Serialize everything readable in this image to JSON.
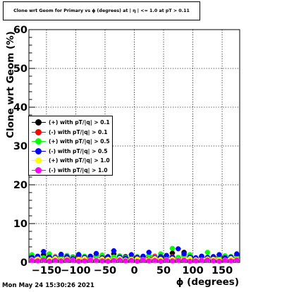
{
  "title": "Clone wrt Geom for Primary vs ϕ (degrees) at | η | <= 1.0 at pT > 0.11",
  "timestamp": "Mon May 24 15:30:26 2021",
  "chart_data": {
    "type": "scatter",
    "title": "Clone wrt Geom for Primary vs ϕ (degrees) at | η | <= 1.0 at pT > 0.11",
    "xlabel": "ϕ (degrees)",
    "ylabel": "Clone wrt  Geom (%)",
    "xlim": [
      -180,
      180
    ],
    "ylim": [
      0,
      60
    ],
    "xticks": [
      -150,
      -100,
      -50,
      0,
      50,
      100,
      150
    ],
    "xtick_labels": [
      "−150",
      "−100",
      "−50",
      "0",
      "50",
      "100",
      "150"
    ],
    "yticks": [
      0,
      10,
      20,
      30,
      40,
      50,
      60
    ],
    "ytick_labels": [
      "0",
      "10",
      "20",
      "30",
      "40",
      "50",
      "60"
    ],
    "grid": true,
    "legend_position": "middle-left",
    "series": [
      {
        "name": "(+) with pT/|q| > 0.1",
        "color": "#000000",
        "x": [
          -175,
          -165,
          -155,
          -145,
          -135,
          -125,
          -115,
          -105,
          -95,
          -85,
          -75,
          -65,
          -55,
          -45,
          -35,
          -25,
          -15,
          -5,
          5,
          15,
          25,
          35,
          45,
          55,
          65,
          75,
          85,
          95,
          105,
          115,
          125,
          135,
          145,
          155,
          165,
          175
        ],
        "y": [
          1.5,
          1.2,
          2.0,
          1.3,
          1.0,
          1.6,
          1.1,
          1.4,
          1.8,
          1.0,
          1.3,
          1.7,
          1.2,
          1.0,
          2.2,
          1.1,
          1.5,
          1.2,
          0.9,
          1.4,
          1.7,
          1.1,
          1.3,
          1.6,
          2.4,
          1.2,
          2.6,
          1.4,
          1.1,
          1.5,
          1.2,
          1.0,
          1.3,
          1.6,
          1.1,
          1.8
        ]
      },
      {
        "name": "(-) with pT/|q| > 0.1",
        "color": "#ff0000",
        "x": [
          -175,
          -165,
          -155,
          -145,
          -135,
          -125,
          -115,
          -105,
          -95,
          -85,
          -75,
          -65,
          -55,
          -45,
          -35,
          -25,
          -15,
          -5,
          5,
          15,
          25,
          35,
          45,
          55,
          65,
          75,
          85,
          95,
          105,
          115,
          125,
          135,
          145,
          155,
          165,
          175
        ],
        "y": [
          1.1,
          1.4,
          1.0,
          1.2,
          1.5,
          1.0,
          1.3,
          1.1,
          1.6,
          1.2,
          1.0,
          1.4,
          1.1,
          1.3,
          1.0,
          1.5,
          1.2,
          1.1,
          1.4,
          1.0,
          1.3,
          1.6,
          1.1,
          1.2,
          1.5,
          1.0,
          1.8,
          1.3,
          1.1,
          1.4,
          1.2,
          1.0,
          1.5,
          1.1,
          1.3,
          1.2
        ]
      },
      {
        "name": "(+) with pT/|q| > 0.5",
        "color": "#00ff00",
        "x": [
          -175,
          -165,
          -155,
          -145,
          -135,
          -125,
          -115,
          -105,
          -95,
          -85,
          -75,
          -65,
          -55,
          -45,
          -35,
          -25,
          -15,
          -5,
          5,
          15,
          25,
          35,
          45,
          55,
          65,
          75,
          85,
          95,
          105,
          115,
          125,
          135,
          145,
          155,
          165,
          175
        ],
        "y": [
          2.0,
          1.5,
          1.2,
          2.2,
          1.4,
          1.1,
          1.8,
          1.3,
          2.1,
          1.6,
          1.2,
          1.5,
          1.9,
          1.1,
          1.4,
          1.7,
          1.3,
          1.0,
          1.5,
          1.2,
          1.8,
          1.4,
          2.2,
          1.6,
          3.6,
          1.3,
          1.5,
          2.0,
          1.2,
          1.6,
          2.6,
          1.4,
          1.2,
          1.7,
          1.5,
          1.3
        ]
      },
      {
        "name": "(-) with pT/|q| > 0.5",
        "color": "#0000ff",
        "x": [
          -175,
          -165,
          -155,
          -145,
          -135,
          -125,
          -115,
          -105,
          -95,
          -85,
          -75,
          -65,
          -55,
          -45,
          -35,
          -25,
          -15,
          -5,
          5,
          15,
          25,
          35,
          45,
          55,
          65,
          75,
          85,
          95,
          105,
          115,
          125,
          135,
          145,
          155,
          165,
          175
        ],
        "y": [
          1.3,
          1.6,
          2.8,
          1.4,
          1.2,
          2.1,
          1.5,
          1.0,
          2.0,
          1.3,
          1.6,
          2.3,
          1.2,
          1.5,
          3.0,
          1.4,
          1.1,
          2.0,
          1.3,
          1.6,
          2.6,
          1.2,
          1.5,
          1.8,
          1.3,
          3.5,
          2.2,
          1.4,
          1.2,
          1.6,
          1.3,
          1.5,
          2.0,
          1.2,
          1.4,
          2.2
        ]
      },
      {
        "name": "(+) with pT/|q| > 1.0",
        "color": "#ffff00",
        "x": [
          -175,
          -165,
          -155,
          -145,
          -135,
          -125,
          -115,
          -105,
          -95,
          -85,
          -75,
          -65,
          -55,
          -45,
          -35,
          -25,
          -15,
          -5,
          5,
          15,
          25,
          35,
          45,
          55,
          65,
          75,
          85,
          95,
          105,
          115,
          125,
          135,
          145,
          155,
          165,
          175
        ],
        "y": [
          0.7,
          0.9,
          0.6,
          0.8,
          1.0,
          0.7,
          0.9,
          0.6,
          0.8,
          1.0,
          0.7,
          0.6,
          0.9,
          0.8,
          0.7,
          1.0,
          0.6,
          0.8,
          0.9,
          0.7,
          0.6,
          1.0,
          0.8,
          0.7,
          0.9,
          0.6,
          0.8,
          1.0,
          0.7,
          0.6,
          0.9,
          0.8,
          0.7,
          0.6,
          1.0,
          0.8
        ]
      },
      {
        "name": "(-) with pT/|q| > 1.0",
        "color": "#ff00ff",
        "x": [
          -175,
          -165,
          -155,
          -145,
          -135,
          -125,
          -115,
          -105,
          -95,
          -85,
          -75,
          -65,
          -55,
          -45,
          -35,
          -25,
          -15,
          -5,
          5,
          15,
          25,
          35,
          45,
          55,
          65,
          75,
          85,
          95,
          105,
          115,
          125,
          135,
          145,
          155,
          165,
          175
        ],
        "y": [
          0.5,
          0.4,
          0.6,
          0.3,
          0.5,
          0.4,
          0.6,
          0.5,
          0.3,
          0.4,
          0.6,
          0.5,
          0.4,
          0.3,
          0.5,
          0.6,
          0.4,
          0.5,
          0.3,
          0.6,
          0.4,
          0.5,
          0.3,
          0.6,
          0.4,
          0.5,
          0.6,
          0.3,
          0.4,
          0.5,
          0.6,
          0.4,
          0.3,
          0.5,
          0.4,
          0.6
        ]
      }
    ]
  }
}
